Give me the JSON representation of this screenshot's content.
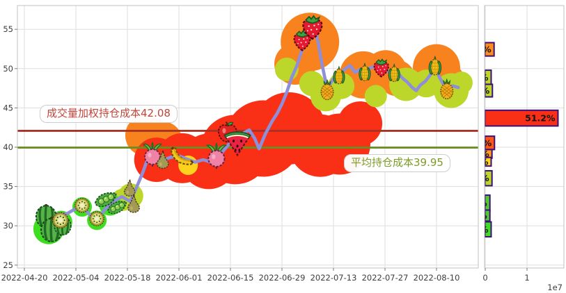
{
  "chart_data": {
    "type": "line",
    "description": "Stock holding-cost distribution chart: price line with fruit markers and volume blobs (left), horizontal volume-by-price bars (right)",
    "main_chart": {
      "x_unit": "days since 2022-04-20",
      "x_ticks": [
        {
          "day": 0,
          "label": "2022-04-20"
        },
        {
          "day": 14,
          "label": "2022-05-04"
        },
        {
          "day": 28,
          "label": "2022-05-18"
        },
        {
          "day": 42,
          "label": "2022-06-01"
        },
        {
          "day": 56,
          "label": "2022-06-15"
        },
        {
          "day": 70,
          "label": "2022-06-29"
        },
        {
          "day": 84,
          "label": "2022-07-13"
        },
        {
          "day": 98,
          "label": "2022-07-27"
        },
        {
          "day": 112,
          "label": "2022-08-10"
        }
      ],
      "y_ticks": [
        {
          "price": 25,
          "label": "25"
        },
        {
          "price": 30,
          "label": "30"
        },
        {
          "price": 35,
          "label": "35"
        },
        {
          "price": 40,
          "label": "40"
        },
        {
          "price": 45,
          "label": "45"
        },
        {
          "price": 50,
          "label": "50"
        },
        {
          "price": 55,
          "label": "55"
        }
      ],
      "ylim": [
        24.6,
        58.0
      ],
      "hlines": [
        {
          "name": "vwap-cost",
          "value": 42.08,
          "label": "成交量加权持仓成本42.08",
          "color": "#a93226",
          "label_color": "#c0453a"
        },
        {
          "name": "avg-cost",
          "value": 39.95,
          "label": "平均持仓成本39.95",
          "color": "#6b8e23",
          "label_color": "#7d9b28"
        }
      ],
      "price_line": {
        "color": "#8f8fd9",
        "points": [
          [
            5.1,
            30.4
          ],
          [
            8.1,
            31.5
          ],
          [
            11.4,
            31.5
          ],
          [
            15.5,
            32.6
          ],
          [
            18,
            31.3
          ],
          [
            19.9,
            30.9
          ],
          [
            22.1,
            32.2
          ],
          [
            24.2,
            33.1
          ],
          [
            26.5,
            33.7
          ],
          [
            28.8,
            33.1
          ],
          [
            30.3,
            34.7
          ],
          [
            32.2,
            36.8
          ],
          [
            33.7,
            38.8
          ],
          [
            35.4,
            38.5
          ],
          [
            37.3,
            38.3
          ],
          [
            39.7,
            38.7
          ],
          [
            42,
            38.9
          ],
          [
            44.1,
            38.5
          ],
          [
            46.4,
            38.1
          ],
          [
            48.6,
            38.4
          ],
          [
            50.7,
            38.1
          ],
          [
            52.6,
            38.7
          ],
          [
            54.7,
            39.9
          ],
          [
            56.9,
            41.1
          ],
          [
            59.2,
            41.7
          ],
          [
            61.1,
            42.2
          ],
          [
            62.6,
            41.1
          ],
          [
            63.8,
            39.8
          ],
          [
            65.5,
            41.7
          ],
          [
            67.2,
            43.2
          ],
          [
            68.7,
            44.3
          ],
          [
            70,
            45.5
          ],
          [
            71.3,
            47
          ],
          [
            72.6,
            48.8
          ],
          [
            74,
            50.3
          ],
          [
            75.5,
            52.4
          ],
          [
            77,
            54.3
          ],
          [
            78.5,
            55.9
          ],
          [
            79.8,
            53.4
          ],
          [
            81,
            50.3
          ],
          [
            82.3,
            47.4
          ],
          [
            83.8,
            48.6
          ],
          [
            85.5,
            49.2
          ],
          [
            87,
            49.9
          ],
          [
            88.5,
            50.4
          ],
          [
            89.9,
            49.5
          ],
          [
            91.2,
            49.9
          ],
          [
            92.5,
            49.7
          ],
          [
            94,
            50.1
          ],
          [
            95.5,
            50.3
          ],
          [
            97,
            50.2
          ],
          [
            98.6,
            49.7
          ],
          [
            99.9,
            49.4
          ],
          [
            101.2,
            49.6
          ],
          [
            102.7,
            48.8
          ],
          [
            104,
            48.3
          ],
          [
            105.4,
            47.6
          ],
          [
            106.5,
            47.2
          ],
          [
            107.6,
            47.9
          ],
          [
            109,
            48.4
          ],
          [
            110.3,
            49.2
          ],
          [
            111.6,
            50.1
          ],
          [
            112.9,
            48.8
          ],
          [
            114.5,
            47.5
          ],
          [
            116.4,
            47.8
          ],
          [
            117.9,
            47.6
          ]
        ]
      },
      "fruit_markers": [
        {
          "fruit": "watermelon",
          "day": 5.9,
          "price": 31.3,
          "size": 36
        },
        {
          "fruit": "watermelon",
          "day": 7.4,
          "price": 29.6,
          "size": 38
        },
        {
          "fruit": "watermelon",
          "day": 10.4,
          "price": 30.1,
          "size": 30
        },
        {
          "fruit": "kiwi",
          "day": 9.8,
          "price": 30.7,
          "size": 26
        },
        {
          "fruit": "kiwi",
          "day": 15.7,
          "price": 32.6,
          "size": 24
        },
        {
          "fruit": "kiwi",
          "day": 19.7,
          "price": 30.9,
          "size": 24
        },
        {
          "fruit": "peas",
          "day": 22.1,
          "price": 33.3,
          "size": 34
        },
        {
          "fruit": "peas",
          "day": 25.2,
          "price": 32.3,
          "size": 30
        },
        {
          "fruit": "pear",
          "day": 28.6,
          "price": 34.8,
          "size": 26
        },
        {
          "fruit": "pear",
          "day": 29.7,
          "price": 32.8,
          "size": 28
        },
        {
          "fruit": "radish",
          "day": 34.8,
          "price": 39.1,
          "size": 36
        },
        {
          "fruit": "pear",
          "day": 37.6,
          "price": 38.4,
          "size": 28
        },
        {
          "fruit": "banana",
          "day": 42.9,
          "price": 38.9,
          "size": 40
        },
        {
          "fruit": "radish",
          "day": 52.2,
          "price": 38.9,
          "size": 38
        },
        {
          "fruit": "apple",
          "day": 55.2,
          "price": 41.9,
          "size": 34
        },
        {
          "fruit": "melonslice",
          "day": 57.9,
          "price": 40.7,
          "size": 44
        },
        {
          "fruit": "strawberry",
          "day": 75.5,
          "price": 53.7,
          "size": 36
        },
        {
          "fruit": "strawberry",
          "day": 78.3,
          "price": 55.4,
          "size": 42
        },
        {
          "fruit": "pineapple",
          "day": 82.3,
          "price": 47.3,
          "size": 30
        },
        {
          "fruit": "corn",
          "day": 85.5,
          "price": 49.1,
          "size": 28
        },
        {
          "fruit": "corn",
          "day": 92.5,
          "price": 49.5,
          "size": 28
        },
        {
          "fruit": "strawberry",
          "day": 97.0,
          "price": 50.2,
          "size": 32
        },
        {
          "fruit": "corn",
          "day": 100.5,
          "price": 49.4,
          "size": 28
        },
        {
          "fruit": "corn",
          "day": 111.6,
          "price": 50.3,
          "size": 30
        },
        {
          "fruit": "pineapple",
          "day": 114.8,
          "price": 47.4,
          "size": 30
        }
      ],
      "volume_blobs": [
        {
          "day": 33.1,
          "price": 41.5,
          "r": 30,
          "color": "#f7821e"
        },
        {
          "day": 37.6,
          "price": 40.8,
          "r": 28,
          "color": "#f7821e"
        },
        {
          "day": 77.6,
          "price": 53.4,
          "r": 42,
          "color": "#f7821e"
        },
        {
          "day": 73.6,
          "price": 50.6,
          "r": 30,
          "color": "#f7821e"
        },
        {
          "day": 92.1,
          "price": 49.2,
          "r": 34,
          "color": "#f7821e"
        },
        {
          "day": 98.2,
          "price": 49.7,
          "r": 30,
          "color": "#f7821e"
        },
        {
          "day": 101.2,
          "price": 48.8,
          "r": 26,
          "color": "#f7821e"
        },
        {
          "day": 112.0,
          "price": 50.1,
          "r": 34,
          "color": "#f7821e"
        },
        {
          "day": 114.6,
          "price": 48.5,
          "r": 26,
          "color": "#f7821e"
        },
        {
          "day": 35.9,
          "price": 38.4,
          "r": 32,
          "color": "#f93016"
        },
        {
          "day": 42.9,
          "price": 38.6,
          "r": 36,
          "color": "#f93016"
        },
        {
          "day": 50.1,
          "price": 38.2,
          "r": 40,
          "color": "#f93016"
        },
        {
          "day": 57.3,
          "price": 39.7,
          "r": 50,
          "color": "#f93016"
        },
        {
          "day": 64.9,
          "price": 41.1,
          "r": 55,
          "color": "#f93016"
        },
        {
          "day": 71.9,
          "price": 42.4,
          "r": 52,
          "color": "#f93016"
        },
        {
          "day": 80.4,
          "price": 40.2,
          "r": 45,
          "color": "#f93016"
        },
        {
          "day": 85.7,
          "price": 40.4,
          "r": 44,
          "color": "#f93016"
        },
        {
          "day": 91.2,
          "price": 43.0,
          "r": 32,
          "color": "#f93016"
        },
        {
          "day": 44.5,
          "price": 37.7,
          "r": 14,
          "color": "#ffd21e"
        },
        {
          "day": 26.7,
          "price": 33.3,
          "r": 16,
          "color": "#bcd62a"
        },
        {
          "day": 28.9,
          "price": 33.8,
          "r": 18,
          "color": "#bcd62a"
        },
        {
          "day": 71.3,
          "price": 49.9,
          "r": 17,
          "color": "#bcd62a"
        },
        {
          "day": 78.1,
          "price": 48.1,
          "r": 18,
          "color": "#bcd62a"
        },
        {
          "day": 81.9,
          "price": 46.5,
          "r": 22,
          "color": "#bcd62a"
        },
        {
          "day": 86.1,
          "price": 47.8,
          "r": 19,
          "color": "#bcd62a"
        },
        {
          "day": 95.5,
          "price": 46.5,
          "r": 16,
          "color": "#bcd62a"
        },
        {
          "day": 103.7,
          "price": 48.0,
          "r": 24,
          "color": "#bcd62a"
        },
        {
          "day": 109.2,
          "price": 48.1,
          "r": 20,
          "color": "#bcd62a"
        },
        {
          "day": 116.0,
          "price": 47.2,
          "r": 25,
          "color": "#bcd62a"
        },
        {
          "day": 118.8,
          "price": 48.2,
          "r": 16,
          "color": "#bcd62a"
        },
        {
          "day": 6.6,
          "price": 29.6,
          "r": 22,
          "color": "#3fdd1f"
        },
        {
          "day": 10.0,
          "price": 30.5,
          "r": 16,
          "color": "#3fdd1f"
        },
        {
          "day": 15.7,
          "price": 32.4,
          "r": 14,
          "color": "#3fdd1f"
        },
        {
          "day": 19.7,
          "price": 30.7,
          "r": 14,
          "color": "#3fdd1f"
        },
        {
          "day": 23.3,
          "price": 32.7,
          "r": 16,
          "color": "#3fdd1f"
        }
      ]
    },
    "side_chart": {
      "x_ticks": [
        {
          "value": 0,
          "label": "0"
        },
        {
          "value": 1,
          "label": "1"
        }
      ],
      "scale_label": "1e7",
      "value_unit": 10000000,
      "bar_border_color": "#3a1078",
      "bars": [
        {
          "price_top": 53.3,
          "price_bottom": 51.6,
          "value": 0.22,
          "color": "#ff8c1a",
          "label": "%"
        },
        {
          "price_top": 49.8,
          "price_bottom": 48.0,
          "value": 0.15,
          "color": "#bcd62a",
          "label": "%"
        },
        {
          "price_top": 48.0,
          "price_bottom": 46.4,
          "value": 0.18,
          "color": "#bcd62a",
          "label": "%"
        },
        {
          "price_top": 44.7,
          "price_bottom": 42.7,
          "value": 1.75,
          "color": "#f93016",
          "label": "51.2%"
        },
        {
          "price_top": 41.4,
          "price_bottom": 39.7,
          "value": 0.23,
          "color": "#ff5516",
          "label": "%"
        },
        {
          "price_top": 39.7,
          "price_bottom": 38.6,
          "value": 0.17,
          "color": "#ff9a1a",
          "label": "%"
        },
        {
          "price_top": 38.7,
          "price_bottom": 37.6,
          "value": 0.15,
          "color": "#ffd21e",
          "label": "%"
        },
        {
          "price_top": 37.0,
          "price_bottom": 35.1,
          "value": 0.17,
          "color": "#bcd62a",
          "label": "%"
        },
        {
          "price_top": 33.9,
          "price_bottom": 31.9,
          "value": 0.12,
          "color": "#54c832",
          "label": "%"
        },
        {
          "price_top": 32.0,
          "price_bottom": 30.6,
          "value": 0.12,
          "color": "#54c832",
          "label": "%"
        },
        {
          "price_top": 30.5,
          "price_bottom": 28.6,
          "value": 0.15,
          "color": "#3fdd1f",
          "label": "%"
        }
      ]
    },
    "style": {
      "grid_color": "#dedede",
      "frame_color": "#c2c2c2",
      "tick_text_color": "#3d3d3d",
      "bar_label_color": "#151515"
    }
  }
}
